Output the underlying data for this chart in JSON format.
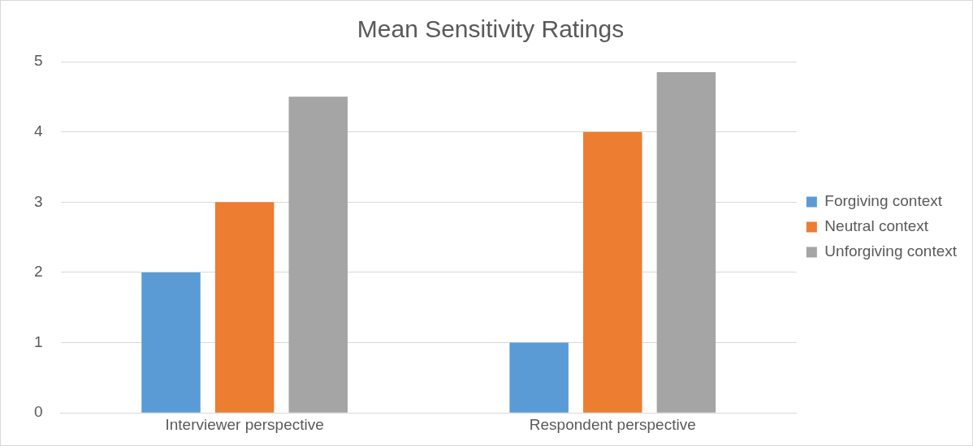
{
  "chart_data": {
    "type": "bar",
    "title": "Mean Sensitivity Ratings",
    "categories": [
      "Interviewer perspective",
      "Respondent perspective"
    ],
    "series": [
      {
        "name": "Forgiving context",
        "color": "#5b9bd5",
        "values": [
          2,
          1
        ]
      },
      {
        "name": "Neutral context",
        "color": "#ed7d31",
        "values": [
          3,
          4
        ]
      },
      {
        "name": "Unforgiving context",
        "color": "#a5a5a5",
        "values": [
          4.5,
          4.85
        ]
      }
    ],
    "ylim": [
      0,
      5
    ],
    "yticks": [
      0,
      1,
      2,
      3,
      4,
      5
    ],
    "grid": "y",
    "legend": "right"
  }
}
